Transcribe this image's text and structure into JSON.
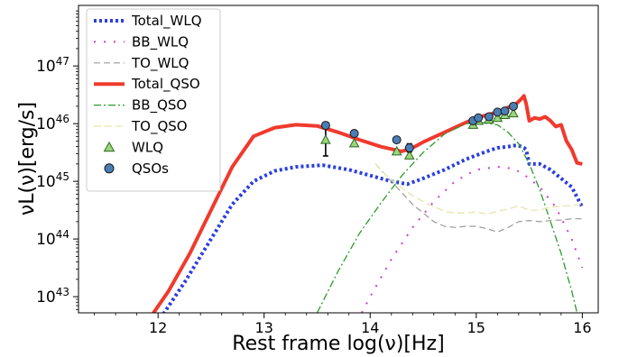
{
  "chart_data": {
    "type": "line",
    "title": "",
    "xlabel": "Rest frame log(ν)[Hz]",
    "ylabel": "νL(ν)[erg/s]",
    "xlim": [
      11.25,
      16.15
    ],
    "ylim": [
      42.72,
      48.05
    ],
    "yscale": "log",
    "grid": false,
    "legend_position": "top-left",
    "x_ticks": [
      12,
      13,
      14,
      15,
      16
    ],
    "x_tick_labels": [
      "12",
      "13",
      "14",
      "15",
      "16"
    ],
    "y_ticks": [
      43,
      44,
      45,
      46,
      47
    ],
    "y_tick_labels": [
      "10^43",
      "10^44",
      "10^45",
      "10^46",
      "10^47"
    ],
    "series": [
      {
        "name": "Total_WLQ",
        "color": "#2b3fe0",
        "dash": "3,3",
        "width": 4,
        "x": [
          12.05,
          12.25,
          12.5,
          12.7,
          12.9,
          13.1,
          13.3,
          13.55,
          13.8,
          14.0,
          14.2,
          14.35,
          14.5,
          14.7,
          14.9,
          15.0,
          15.1,
          15.2,
          15.3,
          15.35,
          15.4,
          15.45,
          15.47,
          15.5,
          15.6,
          15.7,
          15.8,
          15.9,
          16.0
        ],
        "y": [
          42.7,
          43.25,
          44.0,
          44.6,
          45.0,
          45.18,
          45.25,
          45.28,
          45.2,
          45.1,
          45.0,
          44.95,
          45.05,
          45.2,
          45.38,
          45.45,
          45.52,
          45.58,
          45.6,
          45.62,
          45.62,
          45.58,
          45.55,
          45.3,
          45.3,
          45.2,
          45.05,
          44.9,
          44.55
        ]
      },
      {
        "name": "BB_WLQ",
        "color": "#d23ad2",
        "dash": "2,9",
        "width": 2,
        "x": [
          13.92,
          14.0,
          14.2,
          14.4,
          14.6,
          14.8,
          15.0,
          15.2,
          15.35,
          15.45,
          15.6,
          15.75,
          15.9,
          16.0
        ],
        "y": [
          42.72,
          43.0,
          43.65,
          44.2,
          44.65,
          45.0,
          45.2,
          45.25,
          45.22,
          45.12,
          44.9,
          44.55,
          44.0,
          43.5
        ]
      },
      {
        "name": "TO_WLQ",
        "color": "#9a9a9a",
        "dash": "7,4",
        "width": 1.2,
        "x": [
          14.05,
          14.1,
          14.2,
          14.3,
          14.4,
          14.5,
          14.6,
          14.7,
          14.8,
          14.9,
          15.0,
          15.1,
          15.2,
          15.3,
          15.4,
          15.5,
          15.6,
          15.7,
          15.8,
          15.9,
          16.0
        ],
        "y": [
          45.3,
          45.2,
          45.0,
          44.8,
          44.6,
          44.45,
          44.3,
          44.22,
          44.2,
          44.22,
          44.22,
          44.18,
          44.12,
          44.2,
          44.3,
          44.32,
          44.3,
          44.32,
          44.33,
          44.35,
          44.35
        ]
      },
      {
        "name": "Total_QSO",
        "color": "#f03a2e",
        "dash": "",
        "width": 4,
        "x": [
          11.95,
          12.1,
          12.3,
          12.5,
          12.7,
          12.9,
          13.1,
          13.3,
          13.5,
          13.7,
          13.9,
          14.1,
          14.3,
          14.4,
          14.5,
          14.7,
          14.9,
          15.0,
          15.1,
          15.2,
          15.3,
          15.38,
          15.42,
          15.45,
          15.47,
          15.5,
          15.55,
          15.6,
          15.65,
          15.7,
          15.75,
          15.8,
          15.85,
          15.9,
          15.95,
          16.0
        ],
        "y": [
          42.7,
          43.1,
          43.75,
          44.5,
          45.25,
          45.78,
          45.93,
          45.98,
          45.96,
          45.85,
          45.72,
          45.6,
          45.52,
          45.58,
          45.68,
          45.85,
          46.02,
          46.1,
          46.15,
          46.2,
          46.28,
          46.35,
          46.42,
          46.48,
          46.35,
          46.05,
          46.1,
          46.08,
          46.12,
          46.05,
          45.95,
          45.98,
          45.7,
          45.55,
          45.32,
          45.3
        ]
      },
      {
        "name": "BB_QSO",
        "color": "#2a9c2a",
        "dash": "8,3,2,3",
        "width": 1.3,
        "x": [
          13.5,
          13.7,
          13.9,
          14.1,
          14.3,
          14.5,
          14.7,
          14.9,
          15.05,
          15.2,
          15.3,
          15.4,
          15.5,
          15.6,
          15.7,
          15.8,
          15.9,
          15.95
        ],
        "y": [
          42.72,
          43.45,
          44.1,
          44.62,
          45.1,
          45.5,
          45.82,
          46.0,
          46.02,
          45.98,
          45.85,
          45.65,
          45.3,
          44.85,
          44.3,
          43.75,
          43.1,
          42.72
        ]
      },
      {
        "name": "TO_QSO",
        "color": "#e8e4a8",
        "dash": "8,4",
        "width": 1.3,
        "x": [
          14.05,
          14.15,
          14.25,
          14.4,
          14.55,
          14.7,
          14.8,
          14.9,
          15.0,
          15.1,
          15.2,
          15.3,
          15.4,
          15.5,
          15.6,
          15.7,
          15.8,
          15.9,
          16.0
        ],
        "y": [
          45.3,
          45.1,
          44.95,
          44.75,
          44.6,
          44.48,
          44.45,
          44.45,
          44.47,
          44.43,
          44.48,
          44.52,
          44.57,
          44.5,
          44.5,
          44.55,
          44.57,
          44.58,
          44.6
        ]
      }
    ],
    "points": [
      {
        "name": "WLQ",
        "marker": "triangle",
        "color": "#9bd67a",
        "edge": "#2e6a23",
        "x": [
          13.58,
          13.85,
          14.25,
          14.37,
          14.97,
          15.02,
          15.12,
          15.2,
          15.27,
          15.35
        ],
        "y": [
          45.72,
          45.66,
          45.52,
          45.45,
          45.98,
          46.05,
          46.07,
          46.1,
          46.15,
          46.18
        ],
        "yerr_low": [
          0.28,
          0,
          0,
          0,
          0,
          0,
          0,
          0,
          0,
          0
        ],
        "yerr_high": [
          0.25,
          0,
          0,
          0,
          0,
          0,
          0,
          0,
          0,
          0
        ]
      },
      {
        "name": "QSOs",
        "marker": "circle",
        "color": "#4a7fb5",
        "edge": "#1a1a1a",
        "x": [
          13.58,
          13.85,
          14.25,
          14.37,
          14.97,
          15.02,
          15.12,
          15.2,
          15.27,
          15.35
        ],
        "y": [
          45.97,
          45.83,
          45.72,
          45.58,
          46.05,
          46.1,
          46.12,
          46.2,
          46.22,
          46.3
        ],
        "yerr_low": [
          0.05,
          0.05,
          0.04,
          0.07,
          0.03,
          0.03,
          0.03,
          0.03,
          0.03,
          0.03
        ],
        "yerr_high": [
          0.05,
          0.05,
          0.04,
          0.07,
          0.03,
          0.03,
          0.03,
          0.03,
          0.03,
          0.03
        ]
      }
    ]
  }
}
